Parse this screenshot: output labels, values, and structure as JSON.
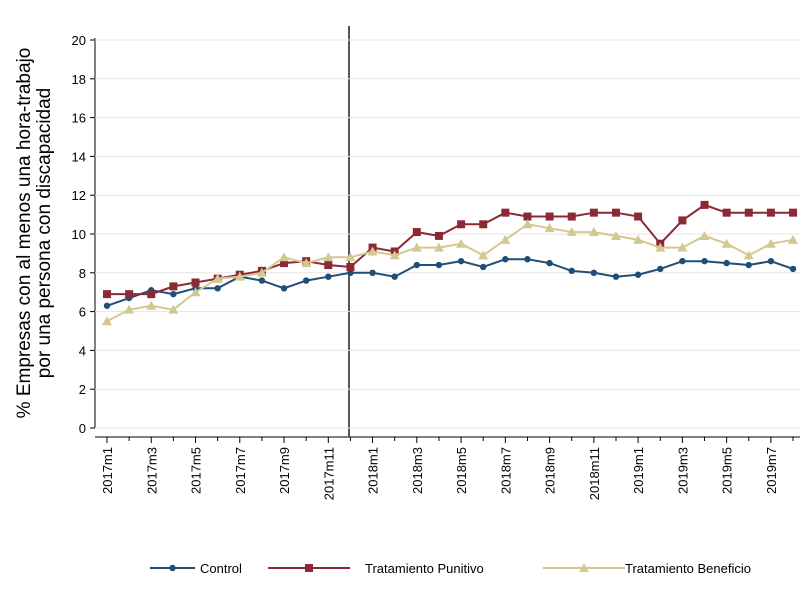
{
  "chart_data": {
    "type": "line",
    "ylabel": [
      "% Empresas con al menos una hora-trabajo",
      "por una persona con discapacidad"
    ],
    "categories": [
      "2017m1",
      null,
      "2017m3",
      null,
      "2017m5",
      null,
      "2017m7",
      null,
      "2017m9",
      null,
      "2017m11",
      null,
      "2018m1",
      null,
      "2018m3",
      null,
      "2018m5",
      null,
      "2018m7",
      null,
      "2018m9",
      null,
      "2018m11",
      null,
      "2019m1",
      null,
      "2019m3",
      null,
      "2019m5",
      null,
      "2019m7",
      null
    ],
    "series": [
      {
        "name": "Control",
        "color": "#1f4e79",
        "marker": "circle",
        "values": [
          6.3,
          6.7,
          7.1,
          6.9,
          7.2,
          7.2,
          7.8,
          7.6,
          7.2,
          7.6,
          7.8,
          8.0,
          8.0,
          7.8,
          8.4,
          8.4,
          8.6,
          8.3,
          8.7,
          8.7,
          8.5,
          8.1,
          8.0,
          7.8,
          7.9,
          8.2,
          8.6,
          8.6,
          8.5,
          8.4,
          8.6,
          8.2
        ]
      },
      {
        "name": "Tratamiento Punitivo",
        "color": "#8b2a35",
        "marker": "square",
        "values": [
          6.9,
          6.9,
          6.9,
          7.3,
          7.5,
          7.7,
          7.9,
          8.1,
          8.5,
          8.6,
          8.4,
          8.3,
          9.3,
          9.1,
          10.1,
          9.9,
          10.5,
          10.5,
          11.1,
          10.9,
          10.9,
          10.9,
          11.1,
          11.1,
          10.9,
          9.5,
          10.7,
          11.5,
          11.1,
          11.1,
          11.1,
          11.1
        ]
      },
      {
        "name": "Tratamiento Beneficio",
        "color": "#d4c891",
        "marker": "triangle",
        "values": [
          5.5,
          6.1,
          6.3,
          6.1,
          7.0,
          7.7,
          7.8,
          8.0,
          8.8,
          8.5,
          8.8,
          8.8,
          9.1,
          8.9,
          9.3,
          9.3,
          9.5,
          8.9,
          9.7,
          10.5,
          10.3,
          10.1,
          10.1,
          9.9,
          9.7,
          9.3,
          9.3,
          9.9,
          9.5,
          8.9,
          9.5,
          9.7
        ]
      }
    ],
    "ylim": [
      0,
      20
    ],
    "yticks": [
      0,
      2,
      4,
      6,
      8,
      10,
      12,
      14,
      16,
      18,
      20
    ],
    "grid": true,
    "legend": "bottom"
  }
}
